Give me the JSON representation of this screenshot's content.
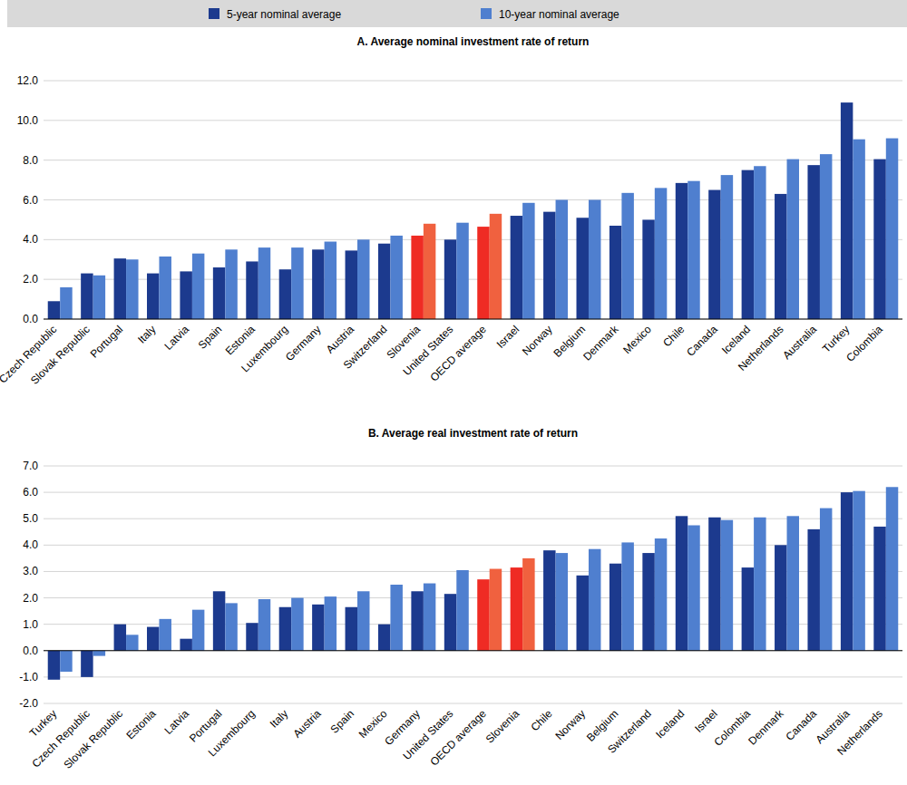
{
  "chart_data": [
    {
      "type": "bar",
      "title": "A. Average nominal investment rate of return",
      "categories": [
        "Czech Republic",
        "Slovak Republic",
        "Portugal",
        "Italy",
        "Latvia",
        "Spain",
        "Estonia",
        "Luxembourg",
        "Germany",
        "Austria",
        "Switzerland",
        "Slovenia",
        "United States",
        "OECD average",
        "Israel",
        "Norway",
        "Belgium",
        "Denmark",
        "Mexico",
        "Chile",
        "Canada",
        "Iceland",
        "Netherlands",
        "Australia",
        "Turkey",
        "Colombia"
      ],
      "series": [
        {
          "name": "5-year nominal average",
          "color": "#1c3a8e",
          "colors": [
            "#1c3a8e",
            "#1c3a8e",
            "#1c3a8e",
            "#1c3a8e",
            "#1c3a8e",
            "#1c3a8e",
            "#1c3a8e",
            "#1c3a8e",
            "#1c3a8e",
            "#1c3a8e",
            "#1c3a8e",
            "#ef2b24",
            "#1c3a8e",
            "#ef2b24",
            "#1c3a8e",
            "#1c3a8e",
            "#1c3a8e",
            "#1c3a8e",
            "#1c3a8e",
            "#1c3a8e",
            "#1c3a8e",
            "#1c3a8e",
            "#1c3a8e",
            "#1c3a8e",
            "#1c3a8e",
            "#1c3a8e"
          ],
          "values": [
            0.9,
            2.3,
            3.05,
            2.3,
            2.4,
            2.6,
            2.9,
            2.5,
            3.5,
            3.45,
            3.8,
            4.2,
            4.0,
            4.65,
            5.2,
            5.4,
            5.1,
            4.7,
            5.0,
            6.85,
            6.5,
            7.5,
            6.3,
            7.75,
            10.9,
            8.05
          ]
        },
        {
          "name": "10-year nominal average",
          "color": "#4f7fcf",
          "colors": [
            "#4f7fcf",
            "#4f7fcf",
            "#4f7fcf",
            "#4f7fcf",
            "#4f7fcf",
            "#4f7fcf",
            "#4f7fcf",
            "#4f7fcf",
            "#4f7fcf",
            "#4f7fcf",
            "#4f7fcf",
            "#f0613f",
            "#4f7fcf",
            "#f0613f",
            "#4f7fcf",
            "#4f7fcf",
            "#4f7fcf",
            "#4f7fcf",
            "#4f7fcf",
            "#4f7fcf",
            "#4f7fcf",
            "#4f7fcf",
            "#4f7fcf",
            "#4f7fcf",
            "#4f7fcf",
            "#4f7fcf"
          ],
          "values": [
            1.6,
            2.2,
            3.0,
            3.15,
            3.3,
            3.5,
            3.6,
            3.6,
            3.9,
            4.0,
            4.2,
            4.8,
            4.85,
            5.3,
            5.85,
            6.0,
            6.0,
            6.35,
            6.6,
            6.95,
            7.25,
            7.7,
            8.05,
            8.3,
            9.05,
            9.1
          ]
        }
      ],
      "ylim": [
        0,
        12
      ],
      "yticks": [
        {
          "value": 0,
          "label": "0.0"
        },
        {
          "value": 2,
          "label": "2.0"
        },
        {
          "value": 4,
          "label": "4.0"
        },
        {
          "value": 6,
          "label": "6.0"
        },
        {
          "value": 8,
          "label": "8.0"
        },
        {
          "value": 10,
          "label": "10.0"
        },
        {
          "value": 12,
          "label": "12.0"
        }
      ],
      "grid": true,
      "legend": "top"
    },
    {
      "type": "bar",
      "title": "B. Average real investment rate of return",
      "categories": [
        "Turkey",
        "Czech Republic",
        "Slovak Republic",
        "Estonia",
        "Latvia",
        "Portugal",
        "Luxembourg",
        "Italy",
        "Austria",
        "Spain",
        "Mexico",
        "Germany",
        "United States",
        "OECD average",
        "Slovenia",
        "Chile",
        "Norway",
        "Belgium",
        "Switzerland",
        "Iceland",
        "Israel",
        "Colombia",
        "Denmark",
        "Canada",
        "Australia",
        "Netherlands"
      ],
      "series": [
        {
          "color": "#1c3a8e",
          "colors": [
            "#1c3a8e",
            "#1c3a8e",
            "#1c3a8e",
            "#1c3a8e",
            "#1c3a8e",
            "#1c3a8e",
            "#1c3a8e",
            "#1c3a8e",
            "#1c3a8e",
            "#1c3a8e",
            "#1c3a8e",
            "#1c3a8e",
            "#1c3a8e",
            "#ef2b24",
            "#ef2b24",
            "#1c3a8e",
            "#1c3a8e",
            "#1c3a8e",
            "#1c3a8e",
            "#1c3a8e",
            "#1c3a8e",
            "#1c3a8e",
            "#1c3a8e",
            "#1c3a8e",
            "#1c3a8e",
            "#1c3a8e"
          ],
          "values": [
            -1.1,
            -1.0,
            1.0,
            0.9,
            0.45,
            2.25,
            1.05,
            1.65,
            1.75,
            1.65,
            1.0,
            2.25,
            2.15,
            2.7,
            3.15,
            3.8,
            2.85,
            3.3,
            3.7,
            5.1,
            5.05,
            3.15,
            4.0,
            4.6,
            6.0,
            4.7
          ]
        },
        {
          "color": "#4f7fcf",
          "colors": [
            "#4f7fcf",
            "#4f7fcf",
            "#4f7fcf",
            "#4f7fcf",
            "#4f7fcf",
            "#4f7fcf",
            "#4f7fcf",
            "#4f7fcf",
            "#4f7fcf",
            "#4f7fcf",
            "#4f7fcf",
            "#4f7fcf",
            "#4f7fcf",
            "#f0613f",
            "#f0613f",
            "#4f7fcf",
            "#4f7fcf",
            "#4f7fcf",
            "#4f7fcf",
            "#4f7fcf",
            "#4f7fcf",
            "#4f7fcf",
            "#4f7fcf",
            "#4f7fcf",
            "#4f7fcf",
            "#4f7fcf"
          ],
          "values": [
            -0.8,
            -0.2,
            0.6,
            1.2,
            1.55,
            1.8,
            1.95,
            2.0,
            2.05,
            2.25,
            2.5,
            2.55,
            3.05,
            3.1,
            3.5,
            3.7,
            3.85,
            4.1,
            4.25,
            4.75,
            4.95,
            5.05,
            5.1,
            5.4,
            6.05,
            6.2
          ]
        }
      ],
      "ylim": [
        -2,
        7
      ],
      "yticks": [
        {
          "value": -2,
          "label": "-2.0"
        },
        {
          "value": -1,
          "label": "-1.0"
        },
        {
          "value": 0,
          "label": "0.0"
        },
        {
          "value": 1,
          "label": "1.0"
        },
        {
          "value": 2,
          "label": "2.0"
        },
        {
          "value": 3,
          "label": "3.0"
        },
        {
          "value": 4,
          "label": "4.0"
        },
        {
          "value": 5,
          "label": "5.0"
        },
        {
          "value": 6,
          "label": "6.0"
        },
        {
          "value": 7,
          "label": "7.0"
        }
      ],
      "grid": true
    }
  ]
}
